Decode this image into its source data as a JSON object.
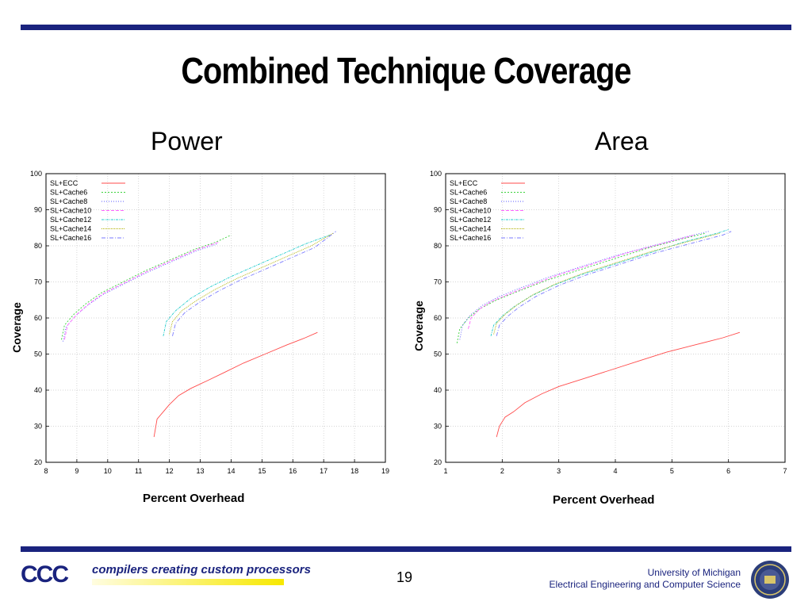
{
  "title": "Combined Technique Coverage",
  "footer": {
    "logo_text": "CCC",
    "tagline": "compilers creating custom processors",
    "page_number": "19",
    "university": "University of Michigan",
    "department": "Electrical Engineering and Computer Science"
  },
  "colors": {
    "rule": "#1a237e",
    "SL+ECC": "#ff4b4b",
    "SL+Cache6": "#3cd23c",
    "SL+Cache8": "#5a5aff",
    "SL+Cache10": "#ff66ff",
    "SL+Cache12": "#22cccc",
    "SL+Cache14": "#b0b000",
    "SL+Cache16": "#7a7aff"
  },
  "chart_data": [
    {
      "type": "line",
      "title": "Power",
      "xlabel": "Percent Overhead",
      "ylabel": "Coverage",
      "xlim": [
        8,
        19
      ],
      "ylim": [
        20,
        100
      ],
      "xticks": [
        8,
        9,
        10,
        11,
        12,
        13,
        14,
        15,
        16,
        17,
        18,
        19
      ],
      "yticks": [
        20,
        30,
        40,
        50,
        60,
        70,
        80,
        90,
        100
      ],
      "grid": true,
      "legend": "top-left",
      "series": [
        {
          "name": "SL+ECC",
          "x": [
            11.5,
            11.6,
            11.8,
            12.0,
            12.3,
            12.7,
            13.2,
            13.8,
            14.4,
            15.1,
            15.8,
            16.4,
            16.8
          ],
          "y": [
            27,
            32,
            34,
            36,
            38.5,
            40.5,
            42.5,
            45,
            47.5,
            50,
            52.5,
            54.5,
            56
          ]
        },
        {
          "name": "SL+Cache6",
          "x": [
            8.5,
            8.6,
            8.9,
            9.3,
            9.8,
            10.5,
            11.2,
            12.0,
            12.8,
            13.5,
            14.0
          ],
          "y": [
            54,
            58,
            61,
            64,
            67,
            70,
            73,
            76,
            79,
            81,
            83
          ]
        },
        {
          "name": "SL+Cache8",
          "x": [
            8.55,
            8.65,
            8.95,
            9.35,
            9.85,
            10.55,
            11.25,
            12.05,
            12.85,
            13.55
          ],
          "y": [
            53.5,
            57.5,
            60.5,
            63.5,
            66.5,
            69.5,
            72.5,
            75.5,
            78.5,
            80.5
          ]
        },
        {
          "name": "SL+Cache10",
          "x": [
            8.6,
            8.7,
            9.0,
            9.4,
            9.9,
            10.6,
            11.3,
            12.1,
            12.9,
            13.6
          ],
          "y": [
            54,
            58,
            61,
            64,
            67,
            70,
            73,
            76,
            79,
            81
          ]
        },
        {
          "name": "SL+Cache12",
          "x": [
            11.8,
            11.9,
            12.2,
            12.7,
            13.3,
            14.0,
            14.8,
            15.6,
            16.4,
            17.2
          ],
          "y": [
            55,
            59,
            62,
            65.5,
            68.5,
            71.5,
            74.5,
            77.5,
            80.5,
            83
          ]
        },
        {
          "name": "SL+Cache14",
          "x": [
            12.0,
            12.1,
            12.4,
            12.9,
            13.5,
            14.2,
            15.0,
            15.8,
            16.6,
            17.3
          ],
          "y": [
            55.5,
            59,
            62,
            65,
            68,
            71,
            74,
            77,
            80,
            83.5
          ]
        },
        {
          "name": "SL+Cache16",
          "x": [
            12.1,
            12.2,
            12.5,
            13.0,
            13.6,
            14.3,
            15.1,
            15.9,
            16.7,
            17.4
          ],
          "y": [
            55,
            58.5,
            61.5,
            64.5,
            67.5,
            70.5,
            73.5,
            76.5,
            79.5,
            84
          ]
        }
      ]
    },
    {
      "type": "line",
      "title": "Area",
      "xlabel": "Percent Overhead",
      "ylabel": "Coverage",
      "xlim": [
        1,
        7
      ],
      "ylim": [
        20,
        100
      ],
      "xticks": [
        1,
        2,
        3,
        4,
        5,
        6,
        7
      ],
      "yticks": [
        20,
        30,
        40,
        50,
        60,
        70,
        80,
        90,
        100
      ],
      "grid": true,
      "legend": "top-left",
      "series": [
        {
          "name": "SL+ECC",
          "x": [
            1.9,
            1.95,
            2.05,
            2.2,
            2.4,
            2.7,
            3.0,
            3.4,
            3.9,
            4.4,
            4.9,
            5.4,
            5.9,
            6.2
          ],
          "y": [
            27,
            30,
            32.5,
            34,
            36.5,
            39,
            41,
            43,
            45.5,
            48,
            50.5,
            52.5,
            54.5,
            56
          ]
        },
        {
          "name": "SL+Cache6",
          "x": [
            1.2,
            1.25,
            1.4,
            1.6,
            1.9,
            2.3,
            2.8,
            3.4,
            4.0,
            4.6,
            5.2,
            5.6
          ],
          "y": [
            53,
            57,
            60,
            62.5,
            65,
            67.5,
            70.5,
            73.5,
            76.5,
            79.5,
            82,
            83.5
          ]
        },
        {
          "name": "SL+Cache8",
          "x": [
            1.25,
            1.3,
            1.45,
            1.65,
            1.95,
            2.35,
            2.85,
            3.45,
            4.05,
            4.65,
            5.25,
            5.65
          ],
          "y": [
            54,
            58,
            61,
            63.5,
            66,
            68.5,
            71.5,
            74.5,
            77.5,
            80,
            82.5,
            84
          ]
        },
        {
          "name": "SL+Cache10",
          "x": [
            1.4,
            1.45,
            1.6,
            1.8,
            2.1,
            2.5,
            3.0,
            3.6,
            4.2,
            4.8,
            5.4
          ],
          "y": [
            57,
            60,
            62.5,
            64.5,
            66.5,
            69,
            72,
            75,
            78,
            80.5,
            83
          ]
        },
        {
          "name": "SL+Cache12",
          "x": [
            1.8,
            1.85,
            2.0,
            2.2,
            2.5,
            2.9,
            3.4,
            4.0,
            4.6,
            5.2,
            5.8,
            6.0
          ],
          "y": [
            55,
            58,
            60.5,
            63,
            66,
            69,
            72,
            75,
            78,
            81,
            83.5,
            84.5
          ]
        },
        {
          "name": "SL+Cache14",
          "x": [
            1.85,
            1.9,
            2.05,
            2.25,
            2.55,
            2.95,
            3.45,
            4.05,
            4.65,
            5.25,
            5.85
          ],
          "y": [
            55.5,
            58.5,
            61,
            63.5,
            66.5,
            69.5,
            72.5,
            75.5,
            78.5,
            81,
            83.5
          ]
        },
        {
          "name": "SL+Cache16",
          "x": [
            1.9,
            1.95,
            2.1,
            2.3,
            2.6,
            3.0,
            3.5,
            4.1,
            4.7,
            5.3,
            5.9,
            6.05
          ],
          "y": [
            55,
            58,
            60.5,
            63,
            66,
            69,
            72,
            75,
            78,
            80.5,
            83,
            84
          ]
        }
      ]
    }
  ]
}
